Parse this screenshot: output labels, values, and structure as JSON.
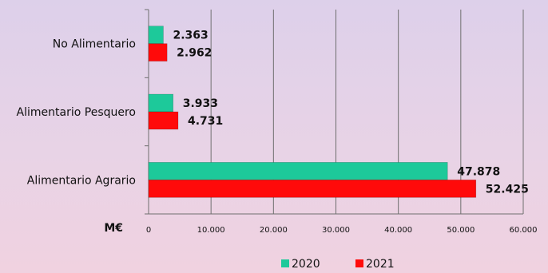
{
  "chart_data": {
    "type": "bar",
    "orientation": "horizontal",
    "categories": [
      "No Alimentario",
      "Alimentario Pesquero",
      "Alimentario Agrario"
    ],
    "series": [
      {
        "name": "2020",
        "color": "#1dc99a",
        "values": [
          2363,
          3933,
          47878
        ],
        "labels": [
          "2.363",
          "3.933",
          "47.878"
        ]
      },
      {
        "name": "2021",
        "color": "#ff0a0a",
        "values": [
          2962,
          4731,
          52425
        ],
        "labels": [
          "2.962",
          "4.731",
          "52.425"
        ]
      }
    ],
    "xlim": [
      0,
      60000
    ],
    "xticks": [
      0,
      10000,
      20000,
      30000,
      40000,
      50000,
      60000
    ],
    "xtick_labels": [
      "0",
      "10.000",
      "20.000",
      "30.000",
      "40.000",
      "50.000",
      "60.000"
    ],
    "unit_label": "M€",
    "grid": "vertical",
    "legend_position": "bottom"
  }
}
